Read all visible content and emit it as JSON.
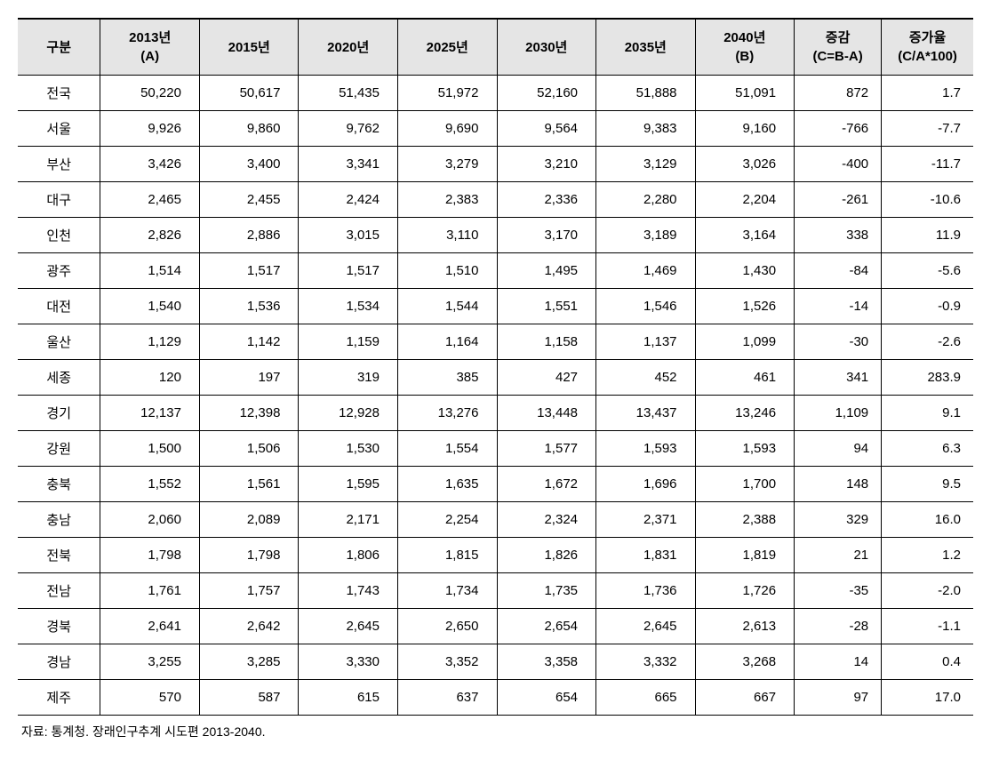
{
  "table": {
    "columns": [
      {
        "key": "label",
        "header_line1": "구분",
        "header_line2": "",
        "align": "center",
        "class": "col-label"
      },
      {
        "key": "y2013",
        "header_line1": "2013년",
        "header_line2": "(A)",
        "align": "num",
        "class": "col-year"
      },
      {
        "key": "y2015",
        "header_line1": "2015년",
        "header_line2": "",
        "align": "num",
        "class": "col-year"
      },
      {
        "key": "y2020",
        "header_line1": "2020년",
        "header_line2": "",
        "align": "num",
        "class": "col-year"
      },
      {
        "key": "y2025",
        "header_line1": "2025년",
        "header_line2": "",
        "align": "num",
        "class": "col-year"
      },
      {
        "key": "y2030",
        "header_line1": "2030년",
        "header_line2": "",
        "align": "num",
        "class": "col-year"
      },
      {
        "key": "y2035",
        "header_line1": "2035년",
        "header_line2": "",
        "align": "num",
        "class": "col-year"
      },
      {
        "key": "y2040",
        "header_line1": "2040년",
        "header_line2": "(B)",
        "align": "num",
        "class": "col-year"
      },
      {
        "key": "delta",
        "header_line1": "증감",
        "header_line2": "(C=B-A)",
        "align": "num-narrow",
        "class": "col-delta"
      },
      {
        "key": "rate",
        "header_line1": "증가율",
        "header_line2": "(C/A*100)",
        "align": "num-narrow",
        "class": "col-rate"
      }
    ],
    "rows": [
      {
        "label": "전국",
        "y2013": "50,220",
        "y2015": "50,617",
        "y2020": "51,435",
        "y2025": "51,972",
        "y2030": "52,160",
        "y2035": "51,888",
        "y2040": "51,091",
        "delta": "872",
        "rate": "1.7"
      },
      {
        "label": "서울",
        "y2013": "9,926",
        "y2015": "9,860",
        "y2020": "9,762",
        "y2025": "9,690",
        "y2030": "9,564",
        "y2035": "9,383",
        "y2040": "9,160",
        "delta": "-766",
        "rate": "-7.7"
      },
      {
        "label": "부산",
        "y2013": "3,426",
        "y2015": "3,400",
        "y2020": "3,341",
        "y2025": "3,279",
        "y2030": "3,210",
        "y2035": "3,129",
        "y2040": "3,026",
        "delta": "-400",
        "rate": "-11.7"
      },
      {
        "label": "대구",
        "y2013": "2,465",
        "y2015": "2,455",
        "y2020": "2,424",
        "y2025": "2,383",
        "y2030": "2,336",
        "y2035": "2,280",
        "y2040": "2,204",
        "delta": "-261",
        "rate": "-10.6"
      },
      {
        "label": "인천",
        "y2013": "2,826",
        "y2015": "2,886",
        "y2020": "3,015",
        "y2025": "3,110",
        "y2030": "3,170",
        "y2035": "3,189",
        "y2040": "3,164",
        "delta": "338",
        "rate": "11.9"
      },
      {
        "label": "광주",
        "y2013": "1,514",
        "y2015": "1,517",
        "y2020": "1,517",
        "y2025": "1,510",
        "y2030": "1,495",
        "y2035": "1,469",
        "y2040": "1,430",
        "delta": "-84",
        "rate": "-5.6"
      },
      {
        "label": "대전",
        "y2013": "1,540",
        "y2015": "1,536",
        "y2020": "1,534",
        "y2025": "1,544",
        "y2030": "1,551",
        "y2035": "1,546",
        "y2040": "1,526",
        "delta": "-14",
        "rate": "-0.9"
      },
      {
        "label": "울산",
        "y2013": "1,129",
        "y2015": "1,142",
        "y2020": "1,159",
        "y2025": "1,164",
        "y2030": "1,158",
        "y2035": "1,137",
        "y2040": "1,099",
        "delta": "-30",
        "rate": "-2.6"
      },
      {
        "label": "세종",
        "y2013": "120",
        "y2015": "197",
        "y2020": "319",
        "y2025": "385",
        "y2030": "427",
        "y2035": "452",
        "y2040": "461",
        "delta": "341",
        "rate": "283.9"
      },
      {
        "label": "경기",
        "y2013": "12,137",
        "y2015": "12,398",
        "y2020": "12,928",
        "y2025": "13,276",
        "y2030": "13,448",
        "y2035": "13,437",
        "y2040": "13,246",
        "delta": "1,109",
        "rate": "9.1"
      },
      {
        "label": "강원",
        "y2013": "1,500",
        "y2015": "1,506",
        "y2020": "1,530",
        "y2025": "1,554",
        "y2030": "1,577",
        "y2035": "1,593",
        "y2040": "1,593",
        "delta": "94",
        "rate": "6.3"
      },
      {
        "label": "충북",
        "y2013": "1,552",
        "y2015": "1,561",
        "y2020": "1,595",
        "y2025": "1,635",
        "y2030": "1,672",
        "y2035": "1,696",
        "y2040": "1,700",
        "delta": "148",
        "rate": "9.5"
      },
      {
        "label": "충남",
        "y2013": "2,060",
        "y2015": "2,089",
        "y2020": "2,171",
        "y2025": "2,254",
        "y2030": "2,324",
        "y2035": "2,371",
        "y2040": "2,388",
        "delta": "329",
        "rate": "16.0"
      },
      {
        "label": "전북",
        "y2013": "1,798",
        "y2015": "1,798",
        "y2020": "1,806",
        "y2025": "1,815",
        "y2030": "1,826",
        "y2035": "1,831",
        "y2040": "1,819",
        "delta": "21",
        "rate": "1.2"
      },
      {
        "label": "전남",
        "y2013": "1,761",
        "y2015": "1,757",
        "y2020": "1,743",
        "y2025": "1,734",
        "y2030": "1,735",
        "y2035": "1,736",
        "y2040": "1,726",
        "delta": "-35",
        "rate": "-2.0"
      },
      {
        "label": "경북",
        "y2013": "2,641",
        "y2015": "2,642",
        "y2020": "2,645",
        "y2025": "2,650",
        "y2030": "2,654",
        "y2035": "2,645",
        "y2040": "2,613",
        "delta": "-28",
        "rate": "-1.1"
      },
      {
        "label": "경남",
        "y2013": "3,255",
        "y2015": "3,285",
        "y2020": "3,330",
        "y2025": "3,352",
        "y2030": "3,358",
        "y2035": "3,332",
        "y2040": "3,268",
        "delta": "14",
        "rate": "0.4"
      },
      {
        "label": "제주",
        "y2013": "570",
        "y2015": "587",
        "y2020": "615",
        "y2025": "637",
        "y2030": "654",
        "y2035": "665",
        "y2040": "667",
        "delta": "97",
        "rate": "17.0"
      }
    ]
  },
  "footnote": "자료: 통계청. 장래인구추계 시도편 2013-2040.",
  "style": {
    "header_bg": "#e5e5e5",
    "border_color": "#000000",
    "font_size_body": 15,
    "font_size_footnote": 14,
    "text_color": "#000000"
  }
}
